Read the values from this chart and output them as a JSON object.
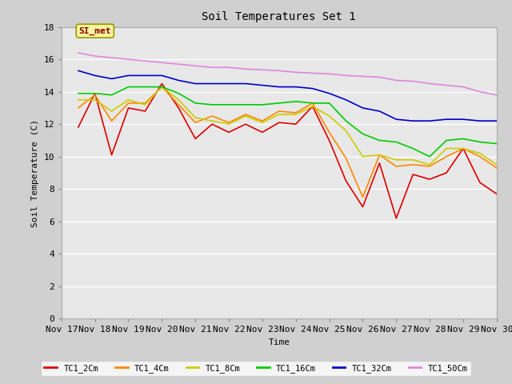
{
  "title": "Soil Temperatures Set 1",
  "xlabel": "Time",
  "ylabel": "Soil Temperature (C)",
  "ylim": [
    0,
    18
  ],
  "yticks": [
    0,
    2,
    4,
    6,
    8,
    10,
    12,
    14,
    16,
    18
  ],
  "xlim": [
    0,
    13
  ],
  "xtick_labels": [
    "Nov 17",
    "Nov 18",
    "Nov 19",
    "Nov 20",
    "Nov 21",
    "Nov 22",
    "Nov 23",
    "Nov 24",
    "Nov 25",
    "Nov 26",
    "Nov 27",
    "Nov 28",
    "Nov 29",
    "Nov 30"
  ],
  "fig_bg_color": "#d0d0d0",
  "plot_bg_color": "#e8e8e8",
  "grid_color": "#ffffff",
  "annotation_text": "SI_met",
  "annotation_color": "#8b0000",
  "annotation_bg": "#f5f5a0",
  "annotation_edge": "#999900",
  "series": {
    "TC1_2Cm": {
      "color": "#dd0000",
      "x": [
        0.5,
        1.0,
        1.5,
        2.0,
        2.5,
        3.0,
        3.5,
        4.0,
        4.5,
        5.0,
        5.5,
        6.0,
        6.5,
        7.0,
        7.5,
        8.0,
        8.5,
        9.0,
        9.5,
        10.0,
        10.5,
        11.0,
        11.5,
        12.0,
        12.5,
        13.0
      ],
      "y": [
        11.8,
        13.9,
        10.1,
        13.0,
        12.8,
        14.5,
        13.0,
        11.1,
        12.0,
        11.5,
        12.0,
        11.5,
        12.1,
        12.0,
        13.1,
        11.0,
        8.5,
        6.9,
        9.6,
        6.2,
        8.9,
        8.6,
        9.0,
        10.5,
        8.4,
        7.7
      ]
    },
    "TC1_4Cm": {
      "color": "#ff8800",
      "x": [
        0.5,
        1.0,
        1.5,
        2.0,
        2.5,
        3.0,
        3.5,
        4.0,
        4.5,
        5.0,
        5.5,
        6.0,
        6.5,
        7.0,
        7.5,
        8.0,
        8.5,
        9.0,
        9.5,
        10.0,
        10.5,
        11.0,
        11.5,
        12.0,
        12.5,
        13.0
      ],
      "y": [
        13.0,
        13.8,
        12.2,
        13.3,
        13.3,
        14.3,
        13.2,
        12.1,
        12.5,
        12.1,
        12.6,
        12.2,
        12.8,
        12.7,
        13.3,
        11.5,
        9.9,
        7.5,
        10.1,
        9.4,
        9.5,
        9.4,
        10.0,
        10.5,
        10.0,
        9.3
      ]
    },
    "TC1_8Cm": {
      "color": "#cccc00",
      "x": [
        0.5,
        1.0,
        1.5,
        2.0,
        2.5,
        3.0,
        3.5,
        4.0,
        4.5,
        5.0,
        5.5,
        6.0,
        6.5,
        7.0,
        7.5,
        8.0,
        8.5,
        9.0,
        9.5,
        10.0,
        10.5,
        11.0,
        11.5,
        12.0,
        12.5,
        13.0
      ],
      "y": [
        13.5,
        13.5,
        12.8,
        13.5,
        13.2,
        14.3,
        13.5,
        12.4,
        12.2,
        12.0,
        12.5,
        12.1,
        12.6,
        12.6,
        13.1,
        12.5,
        11.6,
        10.0,
        10.1,
        9.8,
        9.8,
        9.5,
        10.5,
        10.5,
        10.2,
        9.5
      ]
    },
    "TC1_16Cm": {
      "color": "#00cc00",
      "x": [
        0.5,
        1.0,
        1.5,
        2.0,
        2.5,
        3.0,
        3.5,
        4.0,
        4.5,
        5.0,
        5.5,
        6.0,
        6.5,
        7.0,
        7.5,
        8.0,
        8.5,
        9.0,
        9.5,
        10.0,
        10.5,
        11.0,
        11.5,
        12.0,
        12.5,
        13.0
      ],
      "y": [
        13.9,
        13.9,
        13.8,
        14.3,
        14.3,
        14.3,
        13.9,
        13.3,
        13.2,
        13.2,
        13.2,
        13.2,
        13.3,
        13.4,
        13.3,
        13.3,
        12.2,
        11.4,
        11.0,
        10.9,
        10.5,
        10.0,
        11.0,
        11.1,
        10.9,
        10.8
      ]
    },
    "TC1_32Cm": {
      "color": "#0000cc",
      "x": [
        0.5,
        1.0,
        1.5,
        2.0,
        2.5,
        3.0,
        3.5,
        4.0,
        4.5,
        5.0,
        5.5,
        6.0,
        6.5,
        7.0,
        7.5,
        8.0,
        8.5,
        9.0,
        9.5,
        10.0,
        10.5,
        11.0,
        11.5,
        12.0,
        12.5,
        13.0
      ],
      "y": [
        15.3,
        15.0,
        14.8,
        15.0,
        15.0,
        15.0,
        14.7,
        14.5,
        14.5,
        14.5,
        14.5,
        14.4,
        14.3,
        14.3,
        14.2,
        13.9,
        13.5,
        13.0,
        12.8,
        12.3,
        12.2,
        12.2,
        12.3,
        12.3,
        12.2,
        12.2
      ]
    },
    "TC1_50Cm": {
      "color": "#dd88dd",
      "x": [
        0.5,
        1.0,
        1.5,
        2.0,
        2.5,
        3.0,
        3.5,
        4.0,
        4.5,
        5.0,
        5.5,
        6.0,
        6.5,
        7.0,
        7.5,
        8.0,
        8.5,
        9.0,
        9.5,
        10.0,
        10.5,
        11.0,
        11.5,
        12.0,
        12.5,
        13.0
      ],
      "y": [
        16.4,
        16.2,
        16.1,
        16.0,
        15.9,
        15.8,
        15.7,
        15.6,
        15.5,
        15.5,
        15.4,
        15.35,
        15.3,
        15.2,
        15.15,
        15.1,
        15.0,
        14.95,
        14.9,
        14.7,
        14.65,
        14.5,
        14.4,
        14.3,
        14.0,
        13.8
      ]
    }
  },
  "legend_order": [
    "TC1_2Cm",
    "TC1_4Cm",
    "TC1_8Cm",
    "TC1_16Cm",
    "TC1_32Cm",
    "TC1_50Cm"
  ],
  "legend_colors": [
    "#dd0000",
    "#ff8800",
    "#cccc00",
    "#00cc00",
    "#0000cc",
    "#dd88dd"
  ]
}
